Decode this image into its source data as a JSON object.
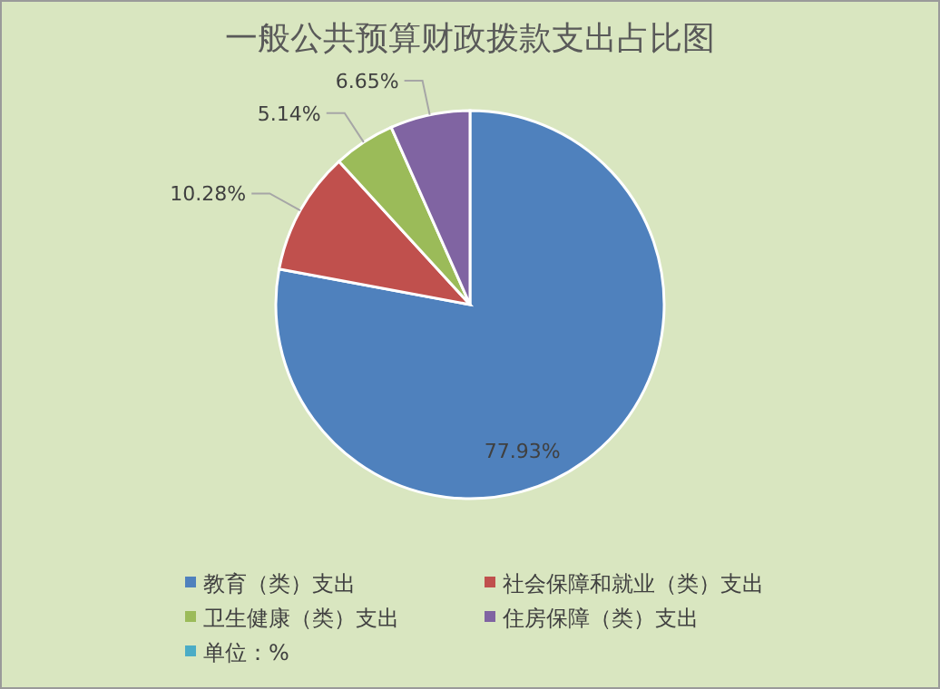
{
  "chart_data": {
    "type": "pie",
    "title": "一般公共预算财政拨款支出占比图",
    "categories": [
      "教育（类）支出",
      "社会保障和就业（类）支出",
      "卫生健康（类）支出",
      "住房保障（类）支出",
      "单位：%"
    ],
    "values": [
      77.93,
      10.28,
      5.14,
      6.65,
      0
    ],
    "colors": [
      "#4f81bd",
      "#c0504d",
      "#9bbb59",
      "#8064a2",
      "#4bacc6"
    ],
    "value_labels": [
      "77.93%",
      "10.28%",
      "5.14%",
      "6.65%",
      null
    ],
    "legend": "bottom"
  }
}
